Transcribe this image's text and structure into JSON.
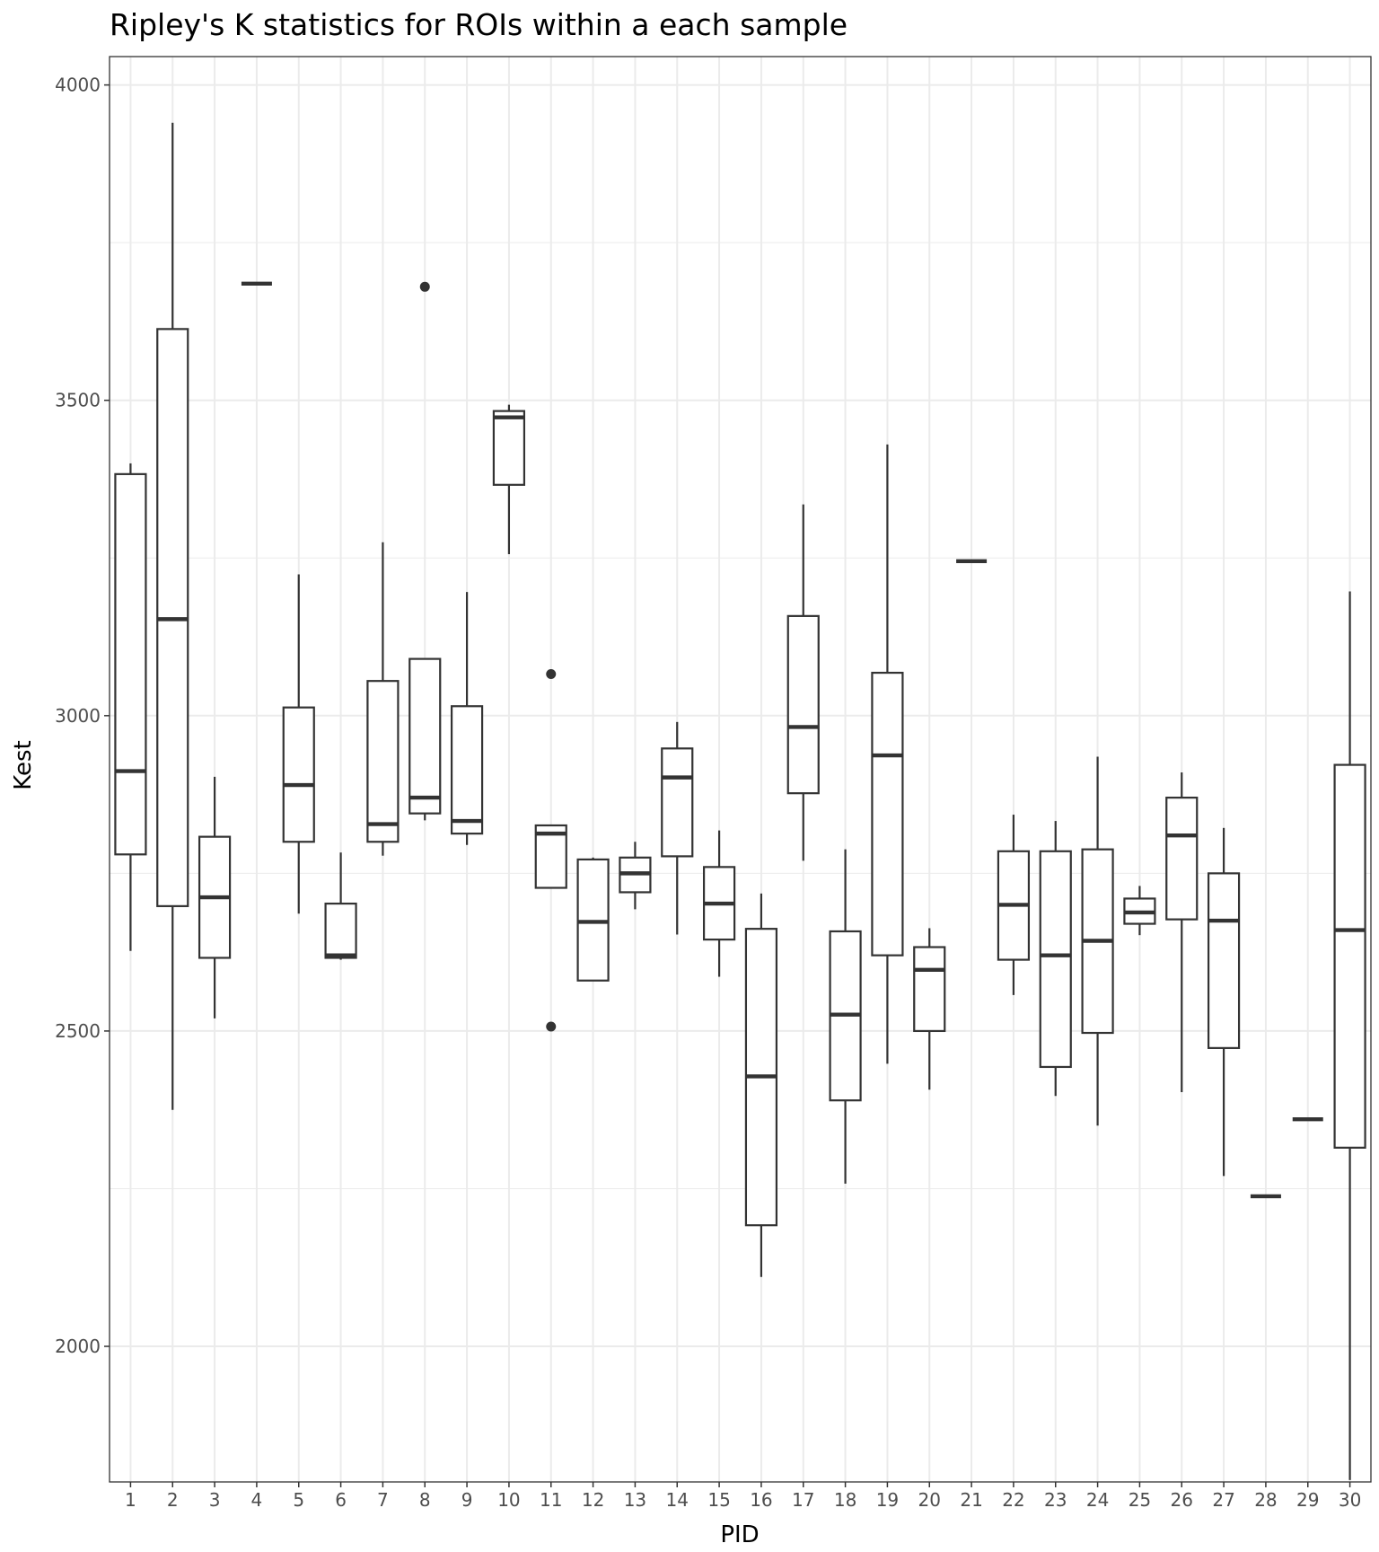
{
  "chart_data": {
    "type": "boxplot",
    "title": "Ripley's K statistics for ROIs within a each sample",
    "xlabel": "PID",
    "ylabel": "Kest",
    "ylim": [
      1785,
      4045
    ],
    "yticks": [
      2000,
      2500,
      3000,
      3500,
      4000
    ],
    "grid": true,
    "legend": "none",
    "colors": {
      "box_line": "#333333",
      "grid": "#ebebeb",
      "panel_border": "#333333",
      "tick_label": "#4d4d4d"
    },
    "categories": [
      "1",
      "2",
      "3",
      "4",
      "5",
      "6",
      "7",
      "8",
      "9",
      "10",
      "11",
      "12",
      "13",
      "14",
      "15",
      "16",
      "17",
      "18",
      "19",
      "20",
      "21",
      "22",
      "23",
      "24",
      "25",
      "26",
      "27",
      "28",
      "29",
      "30"
    ],
    "boxes": [
      {
        "pid": "1",
        "min": 2627,
        "q1": 2780,
        "median": 2912,
        "q3": 3383,
        "max": 3400,
        "outliers": []
      },
      {
        "pid": "2",
        "min": 2375,
        "q1": 2698,
        "median": 3153,
        "q3": 3613,
        "max": 3940,
        "outliers": []
      },
      {
        "pid": "3",
        "min": 2520,
        "q1": 2616,
        "median": 2712,
        "q3": 2808,
        "max": 2903,
        "outliers": []
      },
      {
        "pid": "4",
        "min": 3685,
        "q1": 3685,
        "median": 3685,
        "q3": 3685,
        "max": 3685,
        "outliers": []
      },
      {
        "pid": "5",
        "min": 2686,
        "q1": 2800,
        "median": 2890,
        "q3": 3013,
        "max": 3224,
        "outliers": []
      },
      {
        "pid": "6",
        "min": 2613,
        "q1": 2616,
        "median": 2620,
        "q3": 2702,
        "max": 2783,
        "outliers": []
      },
      {
        "pid": "7",
        "min": 2778,
        "q1": 2800,
        "median": 2828,
        "q3": 3055,
        "max": 3275,
        "outliers": []
      },
      {
        "pid": "8",
        "min": 2834,
        "q1": 2845,
        "median": 2870,
        "q3": 3090,
        "max": 3090,
        "outliers": [
          3680
        ]
      },
      {
        "pid": "9",
        "min": 2795,
        "q1": 2813,
        "median": 2833,
        "q3": 3015,
        "max": 3196,
        "outliers": []
      },
      {
        "pid": "10",
        "min": 3256,
        "q1": 3366,
        "median": 3473,
        "q3": 3483,
        "max": 3493,
        "outliers": []
      },
      {
        "pid": "11",
        "min": 2727,
        "q1": 2727,
        "median": 2813,
        "q3": 2826,
        "max": 2826,
        "outliers": [
          3066,
          2507
        ]
      },
      {
        "pid": "12",
        "min": 2580,
        "q1": 2580,
        "median": 2673,
        "q3": 2772,
        "max": 2775,
        "outliers": []
      },
      {
        "pid": "13",
        "min": 2693,
        "q1": 2720,
        "median": 2750,
        "q3": 2775,
        "max": 2800,
        "outliers": []
      },
      {
        "pid": "14",
        "min": 2653,
        "q1": 2777,
        "median": 2902,
        "q3": 2948,
        "max": 2990,
        "outliers": []
      },
      {
        "pid": "15",
        "min": 2586,
        "q1": 2645,
        "median": 2702,
        "q3": 2760,
        "max": 2818,
        "outliers": []
      },
      {
        "pid": "16",
        "min": 2110,
        "q1": 2192,
        "median": 2428,
        "q3": 2662,
        "max": 2718,
        "outliers": []
      },
      {
        "pid": "17",
        "min": 2770,
        "q1": 2877,
        "median": 2982,
        "q3": 3158,
        "max": 3335,
        "outliers": []
      },
      {
        "pid": "18",
        "min": 2258,
        "q1": 2390,
        "median": 2526,
        "q3": 2658,
        "max": 2788,
        "outliers": []
      },
      {
        "pid": "19",
        "min": 2448,
        "q1": 2620,
        "median": 2937,
        "q3": 3068,
        "max": 3430,
        "outliers": []
      },
      {
        "pid": "20",
        "min": 2407,
        "q1": 2500,
        "median": 2597,
        "q3": 2633,
        "max": 2663,
        "outliers": []
      },
      {
        "pid": "21",
        "min": 3245,
        "q1": 3245,
        "median": 3245,
        "q3": 3245,
        "max": 3245,
        "outliers": []
      },
      {
        "pid": "22",
        "min": 2557,
        "q1": 2613,
        "median": 2700,
        "q3": 2785,
        "max": 2843,
        "outliers": []
      },
      {
        "pid": "23",
        "min": 2397,
        "q1": 2443,
        "median": 2620,
        "q3": 2785,
        "max": 2833,
        "outliers": []
      },
      {
        "pid": "24",
        "min": 2350,
        "q1": 2497,
        "median": 2643,
        "q3": 2788,
        "max": 2935,
        "outliers": []
      },
      {
        "pid": "25",
        "min": 2652,
        "q1": 2670,
        "median": 2688,
        "q3": 2710,
        "max": 2730,
        "outliers": []
      },
      {
        "pid": "26",
        "min": 2403,
        "q1": 2677,
        "median": 2810,
        "q3": 2870,
        "max": 2910,
        "outliers": []
      },
      {
        "pid": "27",
        "min": 2270,
        "q1": 2473,
        "median": 2675,
        "q3": 2750,
        "max": 2822,
        "outliers": []
      },
      {
        "pid": "28",
        "min": 2238,
        "q1": 2238,
        "median": 2238,
        "q3": 2238,
        "max": 2238,
        "outliers": []
      },
      {
        "pid": "29",
        "min": 2360,
        "q1": 2360,
        "median": 2360,
        "q3": 2360,
        "max": 2360,
        "outliers": []
      },
      {
        "pid": "30",
        "min": 1788,
        "q1": 2315,
        "median": 2660,
        "q3": 2922,
        "max": 3197,
        "outliers": []
      }
    ]
  }
}
